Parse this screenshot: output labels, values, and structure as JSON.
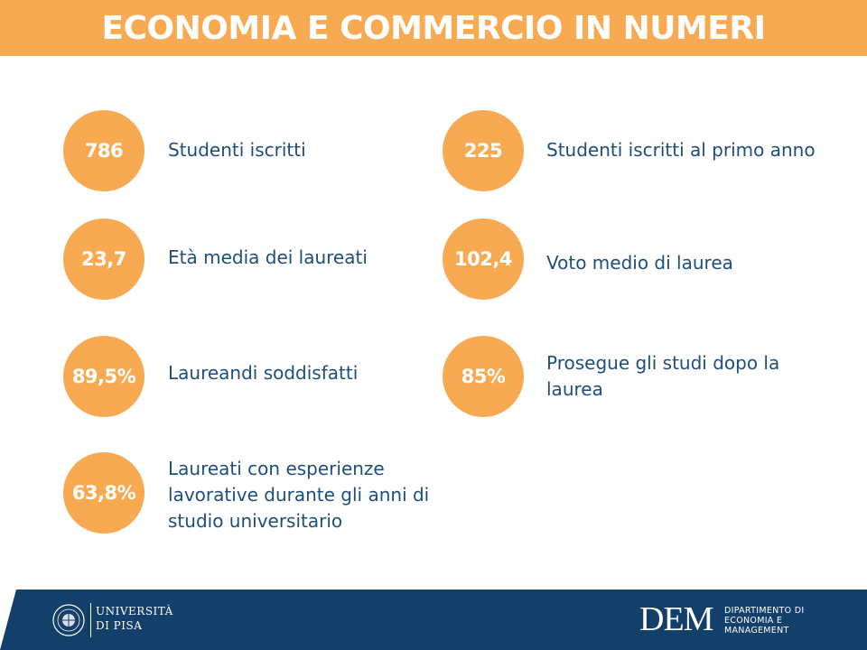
{
  "header": {
    "title": "ECONOMIA E COMMERCIO IN NUMERI"
  },
  "stats": [
    {
      "value": "786",
      "label": "Studenti iscritti"
    },
    {
      "value": "225",
      "label": "Studenti iscritti al primo anno"
    },
    {
      "value": "23,7",
      "label": "Età media dei laureati"
    },
    {
      "value": "102,4",
      "label": "Voto medio di laurea"
    },
    {
      "value": "89,5%",
      "label": "Laureandi soddisfatti"
    },
    {
      "value": "85%",
      "label": "Prosegue gli studi dopo la laurea"
    },
    {
      "value": "63,8%",
      "label": "Laureati con esperienze lavorative durante gli anni di studio universitario"
    }
  ],
  "footer": {
    "university_line1": "UNIVERSITÀ",
    "university_line2": "DI PISA",
    "dem_logo": "DEM",
    "dem_line1": "DIPARTIMENTO DI",
    "dem_line2": "ECONOMIA E",
    "dem_line3": "MANAGEMENT"
  },
  "colors": {
    "accent": "#f7aa52",
    "text": "#1e4e7c",
    "footer": "#133f6b"
  }
}
